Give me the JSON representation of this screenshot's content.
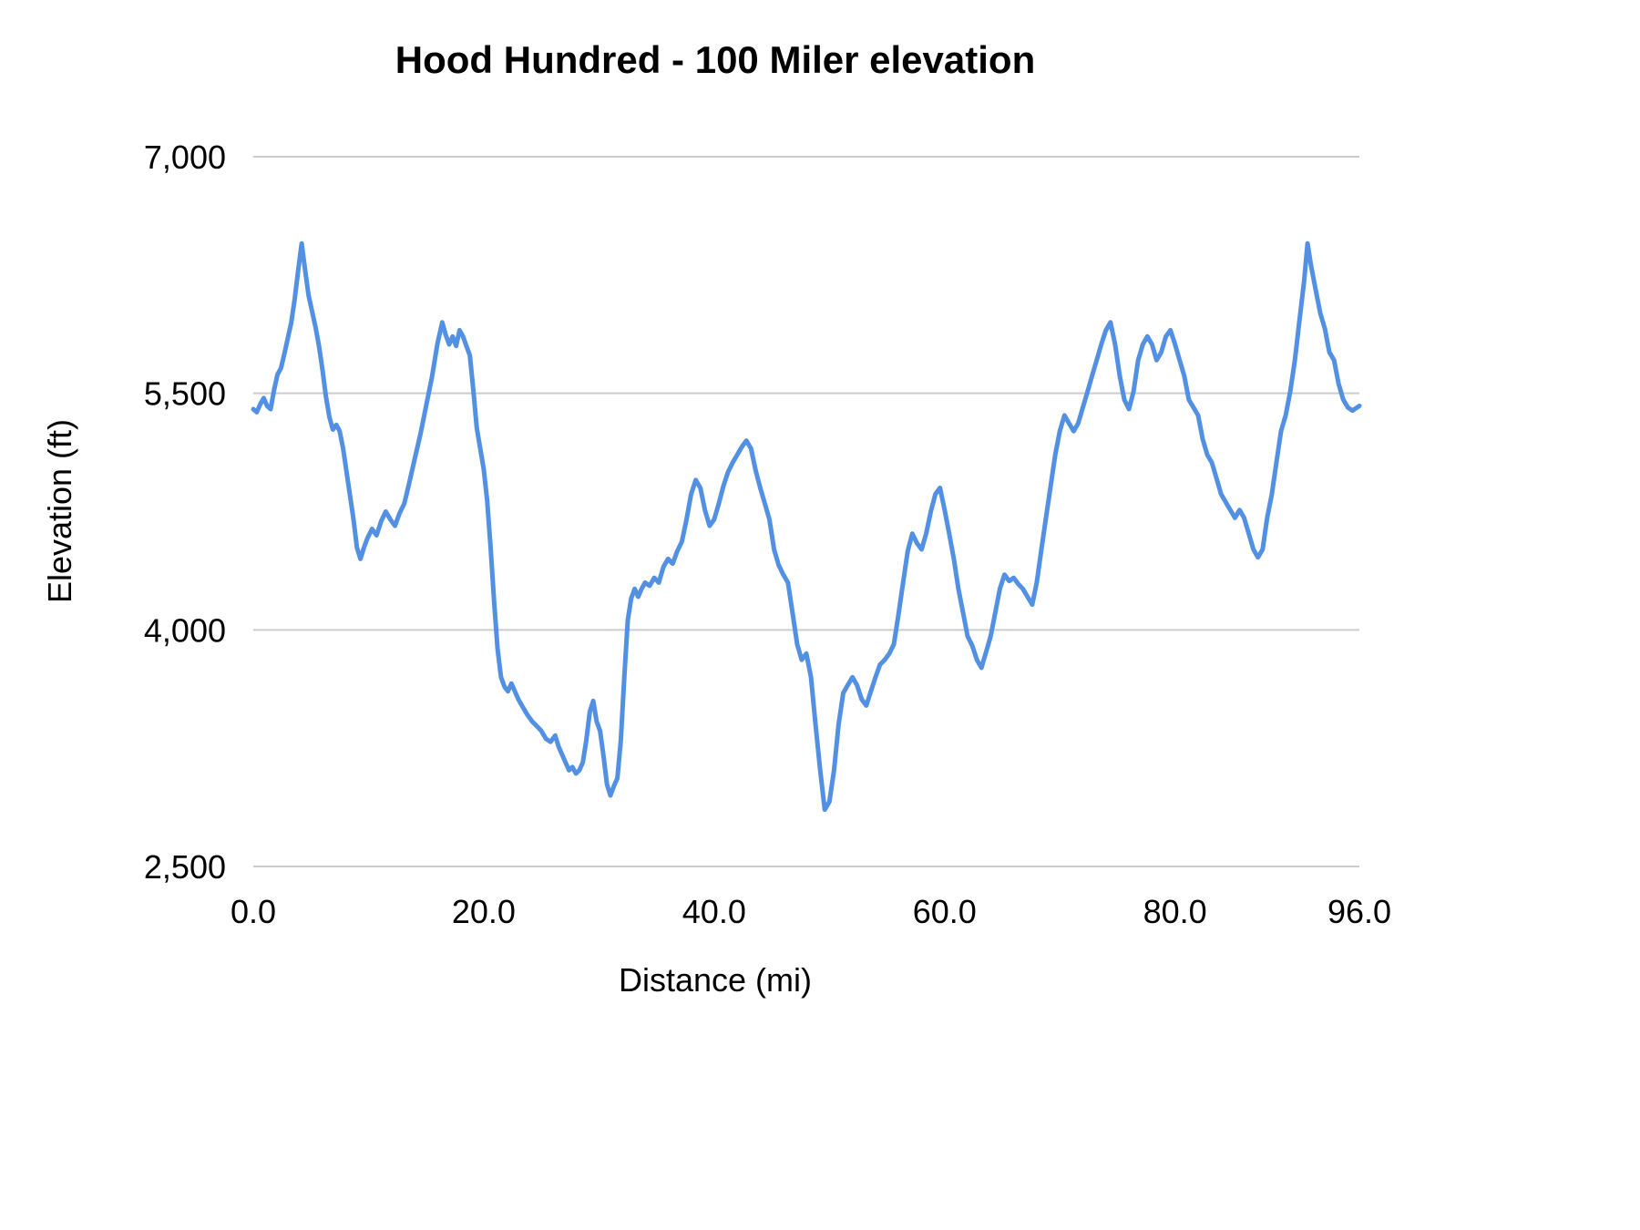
{
  "chart_data": {
    "type": "line",
    "title": "Hood Hundred - 100 Miler elevation",
    "xlabel": "Distance (mi)",
    "ylabel": "Elevation (ft)",
    "xlim": [
      0,
      96
    ],
    "ylim": [
      2500,
      7000
    ],
    "grid": "horizontal",
    "legend": "none",
    "line_color": "#5290e4",
    "grid_color": "#cccccc",
    "xticks": [
      {
        "v": 0,
        "label": "0.0"
      },
      {
        "v": 20,
        "label": "20.0"
      },
      {
        "v": 40,
        "label": "40.0"
      },
      {
        "v": 60,
        "label": "60.0"
      },
      {
        "v": 80,
        "label": "80.0"
      },
      {
        "v": 96,
        "label": "96.0"
      }
    ],
    "yticks": [
      {
        "v": 2500,
        "label": "2,500"
      },
      {
        "v": 4000,
        "label": "4,000"
      },
      {
        "v": 5500,
        "label": "5,500"
      },
      {
        "v": 7000,
        "label": "7,000"
      }
    ],
    "series_name": "Elevation (ft)",
    "points": [
      [
        0,
        5400
      ],
      [
        0.3,
        5380
      ],
      [
        0.6,
        5430
      ],
      [
        0.9,
        5470
      ],
      [
        1.2,
        5420
      ],
      [
        1.5,
        5400
      ],
      [
        1.8,
        5520
      ],
      [
        2.1,
        5620
      ],
      [
        2.4,
        5660
      ],
      [
        2.7,
        5750
      ],
      [
        3,
        5850
      ],
      [
        3.3,
        5950
      ],
      [
        3.6,
        6100
      ],
      [
        3.9,
        6280
      ],
      [
        4.2,
        6450
      ],
      [
        4.5,
        6280
      ],
      [
        4.8,
        6120
      ],
      [
        5.1,
        6020
      ],
      [
        5.4,
        5920
      ],
      [
        5.7,
        5800
      ],
      [
        6,
        5650
      ],
      [
        6.3,
        5480
      ],
      [
        6.6,
        5350
      ],
      [
        6.9,
        5270
      ],
      [
        7.2,
        5300
      ],
      [
        7.5,
        5260
      ],
      [
        7.8,
        5150
      ],
      [
        8.1,
        5000
      ],
      [
        8.4,
        4850
      ],
      [
        8.7,
        4700
      ],
      [
        9,
        4520
      ],
      [
        9.3,
        4450
      ],
      [
        9.6,
        4520
      ],
      [
        9.9,
        4580
      ],
      [
        10.3,
        4640
      ],
      [
        10.7,
        4600
      ],
      [
        11.1,
        4690
      ],
      [
        11.5,
        4750
      ],
      [
        11.9,
        4700
      ],
      [
        12.3,
        4660
      ],
      [
        12.7,
        4740
      ],
      [
        13.1,
        4800
      ],
      [
        13.5,
        4920
      ],
      [
        14,
        5080
      ],
      [
        14.5,
        5240
      ],
      [
        15,
        5420
      ],
      [
        15.5,
        5600
      ],
      [
        16,
        5820
      ],
      [
        16.4,
        5950
      ],
      [
        16.7,
        5870
      ],
      [
        17,
        5810
      ],
      [
        17.3,
        5860
      ],
      [
        17.6,
        5800
      ],
      [
        17.9,
        5900
      ],
      [
        18.2,
        5860
      ],
      [
        18.5,
        5800
      ],
      [
        18.8,
        5740
      ],
      [
        19.1,
        5520
      ],
      [
        19.4,
        5280
      ],
      [
        19.7,
        5150
      ],
      [
        20,
        5020
      ],
      [
        20.3,
        4820
      ],
      [
        20.6,
        4520
      ],
      [
        20.9,
        4180
      ],
      [
        21.2,
        3880
      ],
      [
        21.5,
        3700
      ],
      [
        21.8,
        3640
      ],
      [
        22.1,
        3610
      ],
      [
        22.4,
        3660
      ],
      [
        22.7,
        3610
      ],
      [
        23,
        3560
      ],
      [
        23.4,
        3510
      ],
      [
        23.8,
        3460
      ],
      [
        24.2,
        3420
      ],
      [
        24.6,
        3390
      ],
      [
        25,
        3360
      ],
      [
        25.4,
        3310
      ],
      [
        25.8,
        3290
      ],
      [
        26.2,
        3330
      ],
      [
        26.5,
        3260
      ],
      [
        26.8,
        3210
      ],
      [
        27.1,
        3160
      ],
      [
        27.4,
        3110
      ],
      [
        27.7,
        3130
      ],
      [
        28,
        3090
      ],
      [
        28.3,
        3110
      ],
      [
        28.6,
        3160
      ],
      [
        28.9,
        3300
      ],
      [
        29.2,
        3480
      ],
      [
        29.5,
        3550
      ],
      [
        29.8,
        3420
      ],
      [
        30.1,
        3360
      ],
      [
        30.4,
        3200
      ],
      [
        30.7,
        3020
      ],
      [
        31,
        2950
      ],
      [
        31.3,
        3010
      ],
      [
        31.6,
        3060
      ],
      [
        31.9,
        3300
      ],
      [
        32.2,
        3700
      ],
      [
        32.5,
        4060
      ],
      [
        32.8,
        4200
      ],
      [
        33.1,
        4260
      ],
      [
        33.4,
        4210
      ],
      [
        33.7,
        4260
      ],
      [
        34,
        4300
      ],
      [
        34.4,
        4280
      ],
      [
        34.8,
        4330
      ],
      [
        35.2,
        4300
      ],
      [
        35.6,
        4400
      ],
      [
        36,
        4450
      ],
      [
        36.4,
        4420
      ],
      [
        36.8,
        4500
      ],
      [
        37.2,
        4560
      ],
      [
        37.6,
        4700
      ],
      [
        38,
        4860
      ],
      [
        38.4,
        4950
      ],
      [
        38.8,
        4900
      ],
      [
        39.2,
        4760
      ],
      [
        39.6,
        4660
      ],
      [
        40,
        4700
      ],
      [
        40.4,
        4800
      ],
      [
        40.8,
        4910
      ],
      [
        41.2,
        5000
      ],
      [
        41.6,
        5060
      ],
      [
        42,
        5110
      ],
      [
        42.4,
        5160
      ],
      [
        42.8,
        5200
      ],
      [
        43.2,
        5150
      ],
      [
        43.6,
        5010
      ],
      [
        44,
        4900
      ],
      [
        44.4,
        4800
      ],
      [
        44.8,
        4700
      ],
      [
        45.2,
        4510
      ],
      [
        45.6,
        4410
      ],
      [
        46,
        4350
      ],
      [
        46.4,
        4300
      ],
      [
        46.8,
        4110
      ],
      [
        47.2,
        3910
      ],
      [
        47.6,
        3810
      ],
      [
        48,
        3850
      ],
      [
        48.4,
        3700
      ],
      [
        48.8,
        3400
      ],
      [
        49.2,
        3110
      ],
      [
        49.6,
        2860
      ],
      [
        50,
        2910
      ],
      [
        50.4,
        3110
      ],
      [
        50.8,
        3400
      ],
      [
        51.2,
        3600
      ],
      [
        51.6,
        3650
      ],
      [
        52,
        3700
      ],
      [
        52.4,
        3650
      ],
      [
        52.8,
        3560
      ],
      [
        53.2,
        3520
      ],
      [
        53.6,
        3610
      ],
      [
        54,
        3700
      ],
      [
        54.4,
        3780
      ],
      [
        54.8,
        3810
      ],
      [
        55.2,
        3850
      ],
      [
        55.6,
        3910
      ],
      [
        56,
        4100
      ],
      [
        56.4,
        4300
      ],
      [
        56.8,
        4500
      ],
      [
        57.2,
        4610
      ],
      [
        57.6,
        4550
      ],
      [
        58,
        4510
      ],
      [
        58.4,
        4610
      ],
      [
        58.8,
        4750
      ],
      [
        59.2,
        4860
      ],
      [
        59.6,
        4900
      ],
      [
        60,
        4760
      ],
      [
        60.4,
        4610
      ],
      [
        60.8,
        4450
      ],
      [
        61.2,
        4260
      ],
      [
        61.6,
        4110
      ],
      [
        62,
        3960
      ],
      [
        62.4,
        3900
      ],
      [
        62.8,
        3810
      ],
      [
        63.2,
        3760
      ],
      [
        63.6,
        3860
      ],
      [
        64,
        3960
      ],
      [
        64.4,
        4110
      ],
      [
        64.8,
        4260
      ],
      [
        65.2,
        4350
      ],
      [
        65.6,
        4310
      ],
      [
        66,
        4330
      ],
      [
        66.4,
        4290
      ],
      [
        66.8,
        4260
      ],
      [
        67.2,
        4210
      ],
      [
        67.6,
        4160
      ],
      [
        68,
        4300
      ],
      [
        68.4,
        4510
      ],
      [
        68.8,
        4710
      ],
      [
        69.2,
        4910
      ],
      [
        69.6,
        5110
      ],
      [
        70,
        5260
      ],
      [
        70.4,
        5360
      ],
      [
        70.8,
        5310
      ],
      [
        71.2,
        5260
      ],
      [
        71.6,
        5310
      ],
      [
        72,
        5410
      ],
      [
        72.4,
        5510
      ],
      [
        72.8,
        5610
      ],
      [
        73.2,
        5710
      ],
      [
        73.6,
        5810
      ],
      [
        74,
        5900
      ],
      [
        74.4,
        5950
      ],
      [
        74.8,
        5810
      ],
      [
        75.2,
        5610
      ],
      [
        75.6,
        5460
      ],
      [
        76,
        5400
      ],
      [
        76.4,
        5510
      ],
      [
        76.8,
        5710
      ],
      [
        77.2,
        5810
      ],
      [
        77.6,
        5860
      ],
      [
        78,
        5810
      ],
      [
        78.4,
        5710
      ],
      [
        78.8,
        5760
      ],
      [
        79.2,
        5860
      ],
      [
        79.6,
        5900
      ],
      [
        80,
        5810
      ],
      [
        80.4,
        5710
      ],
      [
        80.8,
        5610
      ],
      [
        81.2,
        5460
      ],
      [
        81.6,
        5410
      ],
      [
        82,
        5360
      ],
      [
        82.4,
        5210
      ],
      [
        82.8,
        5110
      ],
      [
        83.2,
        5060
      ],
      [
        83.6,
        4960
      ],
      [
        84,
        4860
      ],
      [
        84.4,
        4810
      ],
      [
        84.8,
        4760
      ],
      [
        85.2,
        4710
      ],
      [
        85.6,
        4760
      ],
      [
        86,
        4710
      ],
      [
        86.4,
        4610
      ],
      [
        86.8,
        4510
      ],
      [
        87.2,
        4460
      ],
      [
        87.6,
        4510
      ],
      [
        88,
        4710
      ],
      [
        88.4,
        4860
      ],
      [
        88.8,
        5060
      ],
      [
        89.2,
        5260
      ],
      [
        89.6,
        5360
      ],
      [
        90,
        5510
      ],
      [
        90.4,
        5710
      ],
      [
        90.8,
        5960
      ],
      [
        91.2,
        6210
      ],
      [
        91.5,
        6450
      ],
      [
        91.8,
        6310
      ],
      [
        92.2,
        6160
      ],
      [
        92.6,
        6010
      ],
      [
        93,
        5910
      ],
      [
        93.4,
        5760
      ],
      [
        93.8,
        5710
      ],
      [
        94.2,
        5560
      ],
      [
        94.6,
        5460
      ],
      [
        95,
        5410
      ],
      [
        95.4,
        5390
      ],
      [
        95.8,
        5410
      ],
      [
        96,
        5420
      ]
    ]
  }
}
